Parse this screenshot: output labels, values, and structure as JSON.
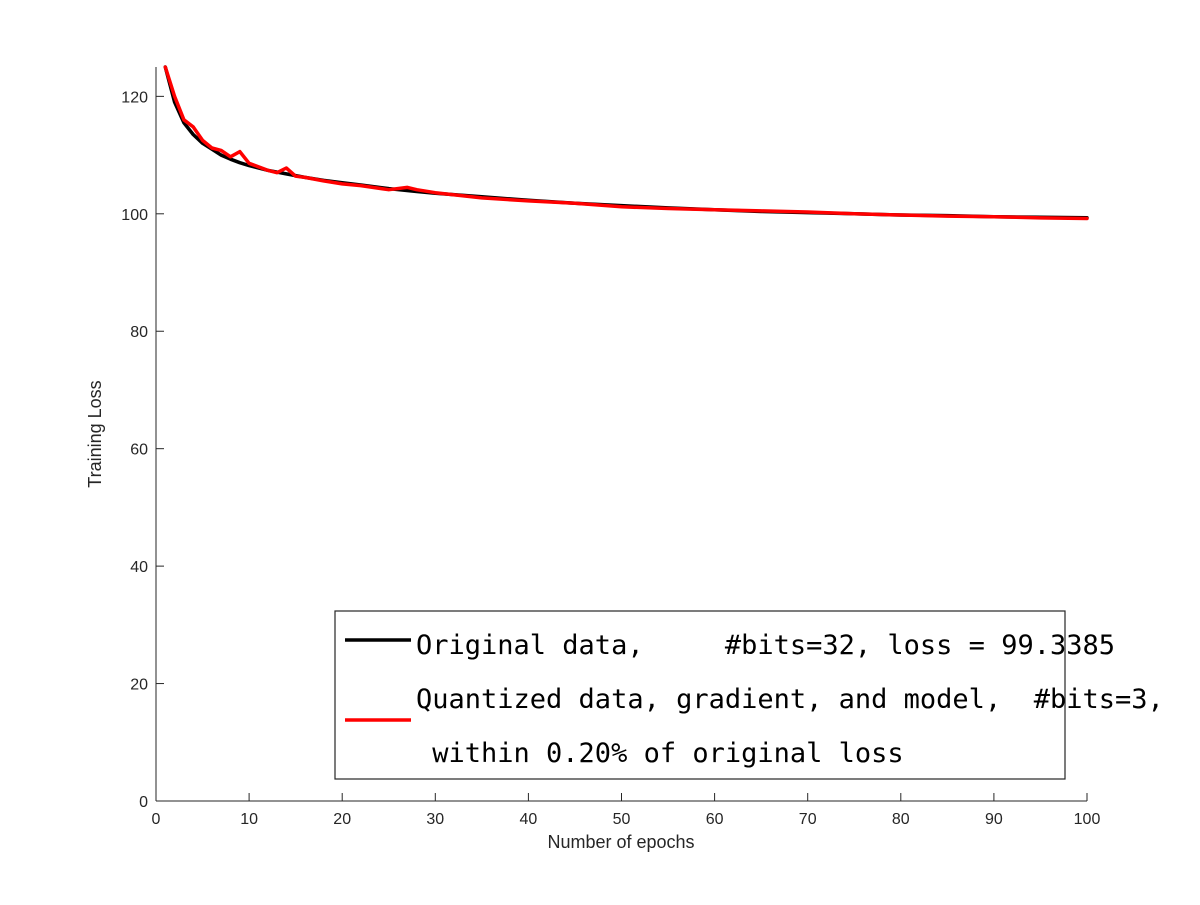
{
  "chart_data": {
    "type": "line",
    "xlabel": "Number of epochs",
    "ylabel": "Training Loss",
    "xlim": [
      0,
      100
    ],
    "ylim": [
      0,
      125
    ],
    "xticks": [
      0,
      10,
      20,
      30,
      40,
      50,
      60,
      70,
      80,
      90,
      100
    ],
    "yticks": [
      0,
      20,
      40,
      60,
      80,
      100,
      120
    ],
    "grid": false,
    "legend_position": "bottom-right",
    "series": [
      {
        "name": "Original data,     #bits=32, loss = 99.3385",
        "color": "#000000",
        "x": [
          1,
          2,
          3,
          4,
          5,
          6,
          7,
          8,
          9,
          10,
          12,
          14,
          16,
          18,
          20,
          22,
          25,
          28,
          30,
          35,
          40,
          45,
          50,
          55,
          60,
          65,
          70,
          75,
          80,
          85,
          90,
          95,
          100
        ],
        "y": [
          125,
          119,
          115.5,
          113.5,
          112,
          111,
          110,
          109.3,
          108.7,
          108.2,
          107.4,
          106.8,
          106.2,
          105.7,
          105.3,
          104.9,
          104.3,
          103.8,
          103.5,
          102.9,
          102.3,
          101.8,
          101.4,
          101.0,
          100.7,
          100.4,
          100.2,
          100.0,
          99.8,
          99.7,
          99.5,
          99.4,
          99.34
        ]
      },
      {
        "name": "Quantized data, gradient, and model,  #bits=3,\n within 0.20% of original loss",
        "color": "#ff0000",
        "x": [
          1,
          2,
          3,
          4,
          5,
          6,
          7,
          8,
          9,
          10,
          12,
          13,
          14,
          15,
          16,
          18,
          20,
          22,
          25,
          27,
          28,
          30,
          35,
          40,
          45,
          50,
          55,
          60,
          65,
          70,
          75,
          80,
          85,
          90,
          95,
          100
        ],
        "y": [
          125,
          120,
          116,
          114.8,
          112.5,
          111.2,
          110.8,
          109.7,
          110.6,
          108.6,
          107.4,
          107,
          107.8,
          106.4,
          106.2,
          105.6,
          105.1,
          104.8,
          104.1,
          104.5,
          104.1,
          103.6,
          102.7,
          102.2,
          101.8,
          101.2,
          100.9,
          100.7,
          100.5,
          100.3,
          100.0,
          99.8,
          99.6,
          99.5,
          99.3,
          99.2
        ]
      }
    ],
    "legend": {
      "line1": "Original data,     #bits=32, loss = 99.3385",
      "line2": "Quantized data, gradient, and model,  #bits=3,",
      "line3": " within 0.20% of original loss"
    }
  }
}
